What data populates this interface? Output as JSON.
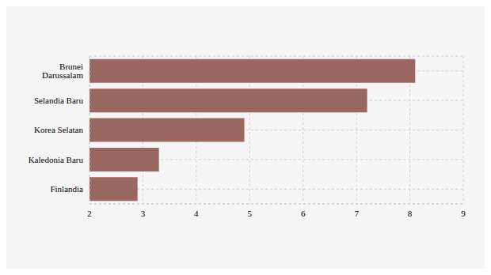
{
  "chart_data": {
    "type": "bar",
    "orientation": "horizontal",
    "categories": [
      "Brunei Darussalam",
      "Selandia Baru",
      "Korea Selatan",
      "Kaledonia Baru",
      "Finlandia"
    ],
    "values": [
      8.1,
      7.2,
      4.9,
      3.3,
      2.9
    ],
    "color": "#955f58",
    "xlim": [
      2,
      9
    ],
    "xticks": [
      2,
      3,
      4,
      5,
      6,
      7,
      8,
      9
    ],
    "grid": true
  }
}
